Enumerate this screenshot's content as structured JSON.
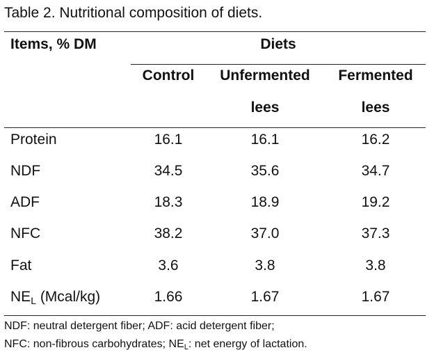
{
  "caption": "Table 2. Nutritional composition of diets.",
  "header": {
    "items_label": "Items, % DM",
    "group_label": "Diets",
    "columns": [
      {
        "line1": "Control",
        "line2": ""
      },
      {
        "line1": "Unfermented",
        "line2": "lees"
      },
      {
        "line1": "Fermented",
        "line2": "lees"
      }
    ]
  },
  "rows": [
    {
      "item": "Protein",
      "values": [
        "16.1",
        "16.1",
        "16.2"
      ]
    },
    {
      "item": "NDF",
      "values": [
        "34.5",
        "35.6",
        "34.7"
      ]
    },
    {
      "item": "ADF",
      "values": [
        "18.3",
        "18.9",
        "19.2"
      ]
    },
    {
      "item": "NFC",
      "values": [
        "38.2",
        "37.0",
        "37.3"
      ]
    },
    {
      "item": "Fat",
      "values": [
        "3.6",
        "3.8",
        "3.8"
      ]
    },
    {
      "item_main": "NE",
      "item_sub": "L",
      "item_rest": " (Mcal/kg)",
      "values": [
        "1.66",
        "1.67",
        "1.67"
      ]
    }
  ],
  "footnotes": {
    "line1": "NDF: neutral detergent fiber; ADF: acid detergent fiber;",
    "line2_pre": "NFC: non-fibrous carbohydrates; NE",
    "line2_sub": "L",
    "line2_post": ": net energy of lactation."
  }
}
